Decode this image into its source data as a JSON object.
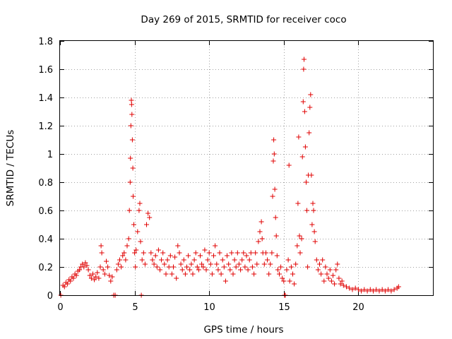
{
  "chart_data": {
    "type": "scatter",
    "title": "Day 269 of 2015, SRMTID for receiver coco",
    "xlabel": "GPS time / hours",
    "ylabel": "SRMTID / TECUs",
    "xlim": [
      0,
      25
    ],
    "ylim": [
      0,
      1.8
    ],
    "xticks": [
      0,
      5,
      10,
      15,
      20
    ],
    "yticks": [
      0,
      0.2,
      0.4,
      0.6,
      0.8,
      1,
      1.2,
      1.4,
      1.6,
      1.8
    ],
    "xtick_labels": [
      "0",
      "5",
      "10",
      "15",
      "20"
    ],
    "ytick_labels": [
      "0",
      "0.2",
      "0.4",
      "0.6",
      "0.8",
      "1",
      "1.2",
      "1.4",
      "1.6",
      "1.8"
    ],
    "grid": true,
    "marker": "+",
    "color": "#e00000",
    "series": [
      {
        "name": "SRMTID",
        "points": [
          [
            0.05,
            0.0
          ],
          [
            0.2,
            0.07
          ],
          [
            0.3,
            0.06
          ],
          [
            0.4,
            0.09
          ],
          [
            0.5,
            0.08
          ],
          [
            0.6,
            0.11
          ],
          [
            0.7,
            0.1
          ],
          [
            0.8,
            0.13
          ],
          [
            0.9,
            0.12
          ],
          [
            1.0,
            0.15
          ],
          [
            1.1,
            0.14
          ],
          [
            1.2,
            0.17
          ],
          [
            1.3,
            0.18
          ],
          [
            1.4,
            0.2
          ],
          [
            1.5,
            0.22
          ],
          [
            1.6,
            0.2
          ],
          [
            1.7,
            0.23
          ],
          [
            1.8,
            0.21
          ],
          [
            1.9,
            0.18
          ],
          [
            2.0,
            0.14
          ],
          [
            2.1,
            0.12
          ],
          [
            2.2,
            0.15
          ],
          [
            2.3,
            0.11
          ],
          [
            2.4,
            0.13
          ],
          [
            2.5,
            0.16
          ],
          [
            2.6,
            0.12
          ],
          [
            2.7,
            0.2
          ],
          [
            2.75,
            0.35
          ],
          [
            2.8,
            0.3
          ],
          [
            2.9,
            0.18
          ],
          [
            3.0,
            0.15
          ],
          [
            3.1,
            0.24
          ],
          [
            3.2,
            0.2
          ],
          [
            3.3,
            0.14
          ],
          [
            3.4,
            0.1
          ],
          [
            3.5,
            0.13
          ],
          [
            3.6,
            0.0
          ],
          [
            3.7,
            0.0
          ],
          [
            3.8,
            0.18
          ],
          [
            3.9,
            0.22
          ],
          [
            4.0,
            0.25
          ],
          [
            4.1,
            0.2
          ],
          [
            4.2,
            0.28
          ],
          [
            4.3,
            0.3
          ],
          [
            4.4,
            0.25
          ],
          [
            4.5,
            0.35
          ],
          [
            4.6,
            0.4
          ],
          [
            4.65,
            0.6
          ],
          [
            4.7,
            0.8
          ],
          [
            4.72,
            0.97
          ],
          [
            4.75,
            1.2
          ],
          [
            4.78,
            1.38
          ],
          [
            4.8,
            1.35
          ],
          [
            4.82,
            1.28
          ],
          [
            4.85,
            1.1
          ],
          [
            4.88,
            0.9
          ],
          [
            4.9,
            0.7
          ],
          [
            4.95,
            0.5
          ],
          [
            5.0,
            0.3
          ],
          [
            5.05,
            0.2
          ],
          [
            5.1,
            0.32
          ],
          [
            5.2,
            0.45
          ],
          [
            5.3,
            0.6
          ],
          [
            5.35,
            0.65
          ],
          [
            5.4,
            0.38
          ],
          [
            5.45,
            0.0
          ],
          [
            5.5,
            0.25
          ],
          [
            5.6,
            0.3
          ],
          [
            5.7,
            0.22
          ],
          [
            5.8,
            0.5
          ],
          [
            5.9,
            0.58
          ],
          [
            6.0,
            0.55
          ],
          [
            6.1,
            0.3
          ],
          [
            6.2,
            0.25
          ],
          [
            6.3,
            0.22
          ],
          [
            6.4,
            0.28
          ],
          [
            6.5,
            0.2
          ],
          [
            6.6,
            0.32
          ],
          [
            6.7,
            0.18
          ],
          [
            6.8,
            0.25
          ],
          [
            6.9,
            0.3
          ],
          [
            7.0,
            0.22
          ],
          [
            7.1,
            0.15
          ],
          [
            7.2,
            0.25
          ],
          [
            7.3,
            0.2
          ],
          [
            7.4,
            0.28
          ],
          [
            7.5,
            0.15
          ],
          [
            7.6,
            0.2
          ],
          [
            7.7,
            0.27
          ],
          [
            7.8,
            0.12
          ],
          [
            7.9,
            0.35
          ],
          [
            8.0,
            0.3
          ],
          [
            8.1,
            0.22
          ],
          [
            8.2,
            0.18
          ],
          [
            8.3,
            0.25
          ],
          [
            8.4,
            0.15
          ],
          [
            8.5,
            0.2
          ],
          [
            8.6,
            0.28
          ],
          [
            8.7,
            0.18
          ],
          [
            8.8,
            0.22
          ],
          [
            8.9,
            0.15
          ],
          [
            9.0,
            0.25
          ],
          [
            9.1,
            0.3
          ],
          [
            9.2,
            0.2
          ],
          [
            9.3,
            0.18
          ],
          [
            9.4,
            0.28
          ],
          [
            9.5,
            0.22
          ],
          [
            9.6,
            0.2
          ],
          [
            9.7,
            0.32
          ],
          [
            9.8,
            0.18
          ],
          [
            9.9,
            0.25
          ],
          [
            10.0,
            0.3
          ],
          [
            10.1,
            0.22
          ],
          [
            10.2,
            0.15
          ],
          [
            10.3,
            0.28
          ],
          [
            10.4,
            0.35
          ],
          [
            10.5,
            0.22
          ],
          [
            10.6,
            0.18
          ],
          [
            10.7,
            0.3
          ],
          [
            10.8,
            0.15
          ],
          [
            10.9,
            0.25
          ],
          [
            11.0,
            0.2
          ],
          [
            11.1,
            0.1
          ],
          [
            11.2,
            0.28
          ],
          [
            11.3,
            0.22
          ],
          [
            11.4,
            0.18
          ],
          [
            11.5,
            0.3
          ],
          [
            11.6,
            0.15
          ],
          [
            11.7,
            0.25
          ],
          [
            11.8,
            0.2
          ],
          [
            11.9,
            0.3
          ],
          [
            12.0,
            0.22
          ],
          [
            12.1,
            0.18
          ],
          [
            12.2,
            0.25
          ],
          [
            12.3,
            0.3
          ],
          [
            12.4,
            0.2
          ],
          [
            12.5,
            0.28
          ],
          [
            12.6,
            0.18
          ],
          [
            12.7,
            0.25
          ],
          [
            12.8,
            0.3
          ],
          [
            12.9,
            0.2
          ],
          [
            13.0,
            0.15
          ],
          [
            13.1,
            0.3
          ],
          [
            13.2,
            0.22
          ],
          [
            13.3,
            0.38
          ],
          [
            13.4,
            0.45
          ],
          [
            13.5,
            0.52
          ],
          [
            13.55,
            0.4
          ],
          [
            13.6,
            0.3
          ],
          [
            13.7,
            0.22
          ],
          [
            13.8,
            0.3
          ],
          [
            13.9,
            0.25
          ],
          [
            14.0,
            0.15
          ],
          [
            14.1,
            0.22
          ],
          [
            14.2,
            0.3
          ],
          [
            14.25,
            0.7
          ],
          [
            14.3,
            0.95
          ],
          [
            14.33,
            1.1
          ],
          [
            14.36,
            1.0
          ],
          [
            14.4,
            0.75
          ],
          [
            14.45,
            0.55
          ],
          [
            14.5,
            0.42
          ],
          [
            14.55,
            0.28
          ],
          [
            14.6,
            0.18
          ],
          [
            14.7,
            0.15
          ],
          [
            14.8,
            0.2
          ],
          [
            14.9,
            0.12
          ],
          [
            15.0,
            0.1
          ],
          [
            15.05,
            0.0
          ],
          [
            15.1,
            0.0
          ],
          [
            15.2,
            0.18
          ],
          [
            15.3,
            0.25
          ],
          [
            15.35,
            0.92
          ],
          [
            15.4,
            0.1
          ],
          [
            15.5,
            0.2
          ],
          [
            15.6,
            0.15
          ],
          [
            15.7,
            0.08
          ],
          [
            15.8,
            0.22
          ],
          [
            15.9,
            0.35
          ],
          [
            15.95,
            0.65
          ],
          [
            16.0,
            1.12
          ],
          [
            16.05,
            0.42
          ],
          [
            16.1,
            0.3
          ],
          [
            16.2,
            0.4
          ],
          [
            16.25,
            0.98
          ],
          [
            16.3,
            1.37
          ],
          [
            16.33,
            1.6
          ],
          [
            16.36,
            1.67
          ],
          [
            16.4,
            1.3
          ],
          [
            16.45,
            1.05
          ],
          [
            16.5,
            0.8
          ],
          [
            16.55,
            0.6
          ],
          [
            16.6,
            0.2
          ],
          [
            16.65,
            0.85
          ],
          [
            16.7,
            1.15
          ],
          [
            16.75,
            1.33
          ],
          [
            16.8,
            1.42
          ],
          [
            16.85,
            0.85
          ],
          [
            16.9,
            0.5
          ],
          [
            16.95,
            0.65
          ],
          [
            17.0,
            0.6
          ],
          [
            17.05,
            0.45
          ],
          [
            17.1,
            0.38
          ],
          [
            17.2,
            0.25
          ],
          [
            17.3,
            0.18
          ],
          [
            17.4,
            0.22
          ],
          [
            17.5,
            0.15
          ],
          [
            17.6,
            0.25
          ],
          [
            17.7,
            0.1
          ],
          [
            17.8,
            0.2
          ],
          [
            17.9,
            0.15
          ],
          [
            18.0,
            0.12
          ],
          [
            18.1,
            0.18
          ],
          [
            18.2,
            0.1
          ],
          [
            18.3,
            0.14
          ],
          [
            18.4,
            0.08
          ],
          [
            18.5,
            0.18
          ],
          [
            18.6,
            0.22
          ],
          [
            18.7,
            0.12
          ],
          [
            18.8,
            0.08
          ],
          [
            18.9,
            0.1
          ],
          [
            19.0,
            0.07
          ],
          [
            19.2,
            0.06
          ],
          [
            19.4,
            0.05
          ],
          [
            19.6,
            0.04
          ],
          [
            19.8,
            0.05
          ],
          [
            20.0,
            0.04
          ],
          [
            20.2,
            0.03
          ],
          [
            20.4,
            0.04
          ],
          [
            20.6,
            0.03
          ],
          [
            20.8,
            0.04
          ],
          [
            21.0,
            0.03
          ],
          [
            21.2,
            0.04
          ],
          [
            21.4,
            0.03
          ],
          [
            21.6,
            0.04
          ],
          [
            21.8,
            0.03
          ],
          [
            22.0,
            0.04
          ],
          [
            22.2,
            0.03
          ],
          [
            22.4,
            0.04
          ],
          [
            22.6,
            0.05
          ],
          [
            22.7,
            0.06
          ]
        ]
      }
    ]
  }
}
